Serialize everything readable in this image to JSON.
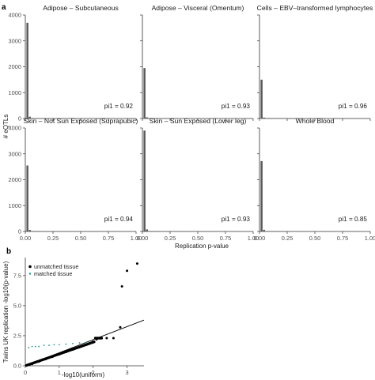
{
  "panel_a_label": "a",
  "panel_b_label": "b",
  "chart_data": [
    {
      "type": "bar",
      "panel": "a",
      "ylabel": "# eQTLs",
      "xlabel": "Replication p-value",
      "xlim": [
        0,
        1
      ],
      "ylim": [
        0,
        4000
      ],
      "xticks": [
        "0.00",
        "0.25",
        "0.50",
        "0.75",
        "1.00"
      ],
      "yticks": [
        "0",
        "1000",
        "2000",
        "3000",
        "4000"
      ],
      "facets": [
        {
          "title": "Adipose – Subcutaneous",
          "annotation": "pi1 = 0.92",
          "first_bin": 3700,
          "second_bin": 70
        },
        {
          "title": "Adipose – Visceral (Omentum)",
          "annotation": "pi1 = 0.93",
          "first_bin": 1950,
          "second_bin": 45
        },
        {
          "title": "Cells – EBV–transformed lymphocytes",
          "annotation": "pi1 = 0.96",
          "first_bin": 1500,
          "second_bin": 35
        },
        {
          "title": "Skin – Not Sun Exposed (Suprapubic)",
          "annotation": "pi1 = 0.94",
          "first_bin": 2550,
          "second_bin": 60
        },
        {
          "title": "Skin – Sun Exposed (Lower leg)",
          "annotation": "pi1 = 0.93",
          "first_bin": 3900,
          "second_bin": 80
        },
        {
          "title": "Whole Blood",
          "annotation": "pi1 = 0.85",
          "first_bin": 2720,
          "second_bin": 65
        }
      ]
    },
    {
      "type": "scatter",
      "panel": "b",
      "xlabel": "-log10(uniform)",
      "ylabel": "Twins UK replication -log10(p-value)",
      "xlim": [
        0,
        3.5
      ],
      "ylim": [
        0,
        9
      ],
      "xticks": [
        "0",
        "1",
        "2",
        "3"
      ],
      "yticks": [
        "0.0",
        "2.5",
        "5.0",
        "7.5"
      ],
      "legend_position": "top-left",
      "series": [
        {
          "name": "unmatched tissue",
          "color": "#000000",
          "points": [
            [
              0.2,
              0.15
            ],
            [
              0.4,
              0.35
            ],
            [
              0.6,
              0.55
            ],
            [
              0.8,
              0.75
            ],
            [
              1.0,
              0.95
            ],
            [
              1.2,
              1.15
            ],
            [
              1.4,
              1.35
            ],
            [
              1.6,
              1.55
            ],
            [
              1.8,
              1.75
            ],
            [
              2.0,
              2.0
            ],
            [
              2.1,
              2.2
            ],
            [
              2.2,
              2.3
            ],
            [
              2.4,
              2.3
            ],
            [
              2.6,
              2.3
            ],
            [
              2.8,
              3.2
            ],
            [
              2.85,
              6.6
            ],
            [
              3.0,
              7.9
            ],
            [
              3.3,
              8.5
            ]
          ]
        },
        {
          "name": "matched tissue",
          "color": "#1a9a8a",
          "points": [
            [
              0.1,
              1.5
            ],
            [
              0.2,
              1.6
            ],
            [
              0.3,
              1.6
            ],
            [
              0.4,
              1.6
            ],
            [
              0.55,
              1.7
            ],
            [
              0.7,
              1.7
            ],
            [
              0.85,
              1.75
            ],
            [
              1.0,
              1.75
            ],
            [
              1.2,
              1.8
            ],
            [
              1.4,
              1.85
            ],
            [
              1.6,
              1.9
            ],
            [
              1.8,
              1.95
            ]
          ]
        }
      ]
    }
  ]
}
